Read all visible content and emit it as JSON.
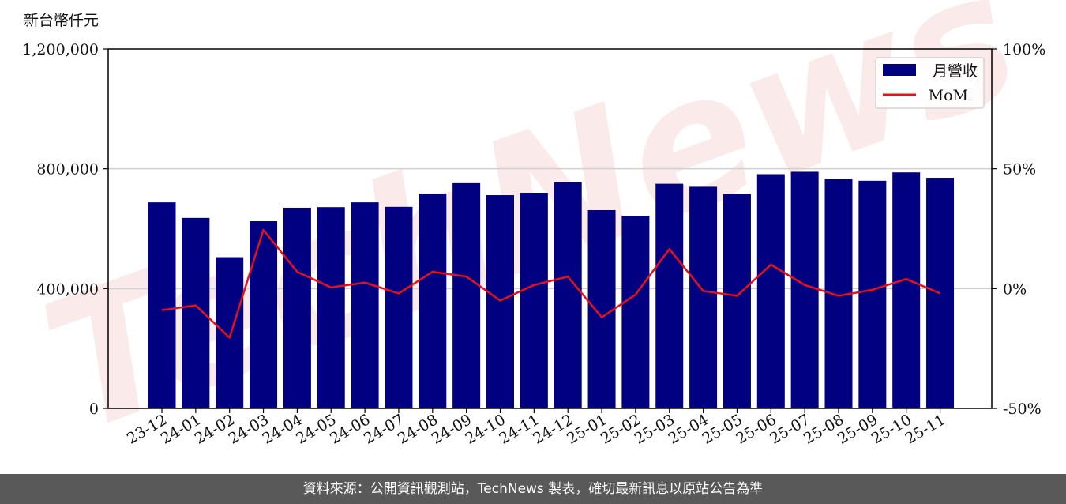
{
  "chart_data": {
    "type": "bar",
    "unit_label": "新台幣仟元",
    "categories": [
      "23-12",
      "24-01",
      "24-02",
      "24-03",
      "24-04",
      "24-05",
      "24-06",
      "24-07",
      "24-08",
      "24-09",
      "24-10",
      "24-11",
      "24-12",
      "25-01",
      "25-02",
      "25-03",
      "25-04",
      "25-05",
      "25-06",
      "25-07",
      "25-08",
      "25-09",
      "25-10",
      "25-11"
    ],
    "series": [
      {
        "name": "月營收",
        "type": "bar",
        "axis": "left",
        "color": "#000080",
        "values": [
          688000,
          636000,
          505000,
          625000,
          670000,
          672000,
          688000,
          673000,
          717000,
          752000,
          712000,
          720000,
          755000,
          662000,
          643000,
          750000,
          740000,
          716000,
          782000,
          790000,
          767000,
          760000,
          788000,
          770000
        ]
      },
      {
        "name": "MoM",
        "type": "line",
        "axis": "right",
        "color": "#e8101a",
        "values": [
          -9,
          -7,
          -20.5,
          24.5,
          7,
          0.5,
          2.5,
          -2,
          7,
          5,
          -5,
          1.5,
          5,
          -12,
          -2.5,
          16.5,
          -1,
          -3,
          10,
          1.5,
          -3,
          -0.5,
          4,
          -2
        ]
      }
    ],
    "y_left": {
      "min": 0,
      "max": 1200000,
      "ticks": [
        "0",
        "400,000",
        "800,000",
        "1,200,000"
      ],
      "tick_values": [
        0,
        400000,
        800000,
        1200000
      ]
    },
    "y_right": {
      "min": -50,
      "max": 100,
      "ticks": [
        "-50%",
        "0%",
        "50%",
        "100%"
      ],
      "tick_values": [
        -50,
        0,
        50,
        100
      ]
    },
    "grid": "horizontal",
    "legend": "top-right",
    "watermark": "TechNews"
  },
  "footer": "資料來源：公開資訊觀測站，TechNews 製表，確切最新訊息以原站公告為準"
}
